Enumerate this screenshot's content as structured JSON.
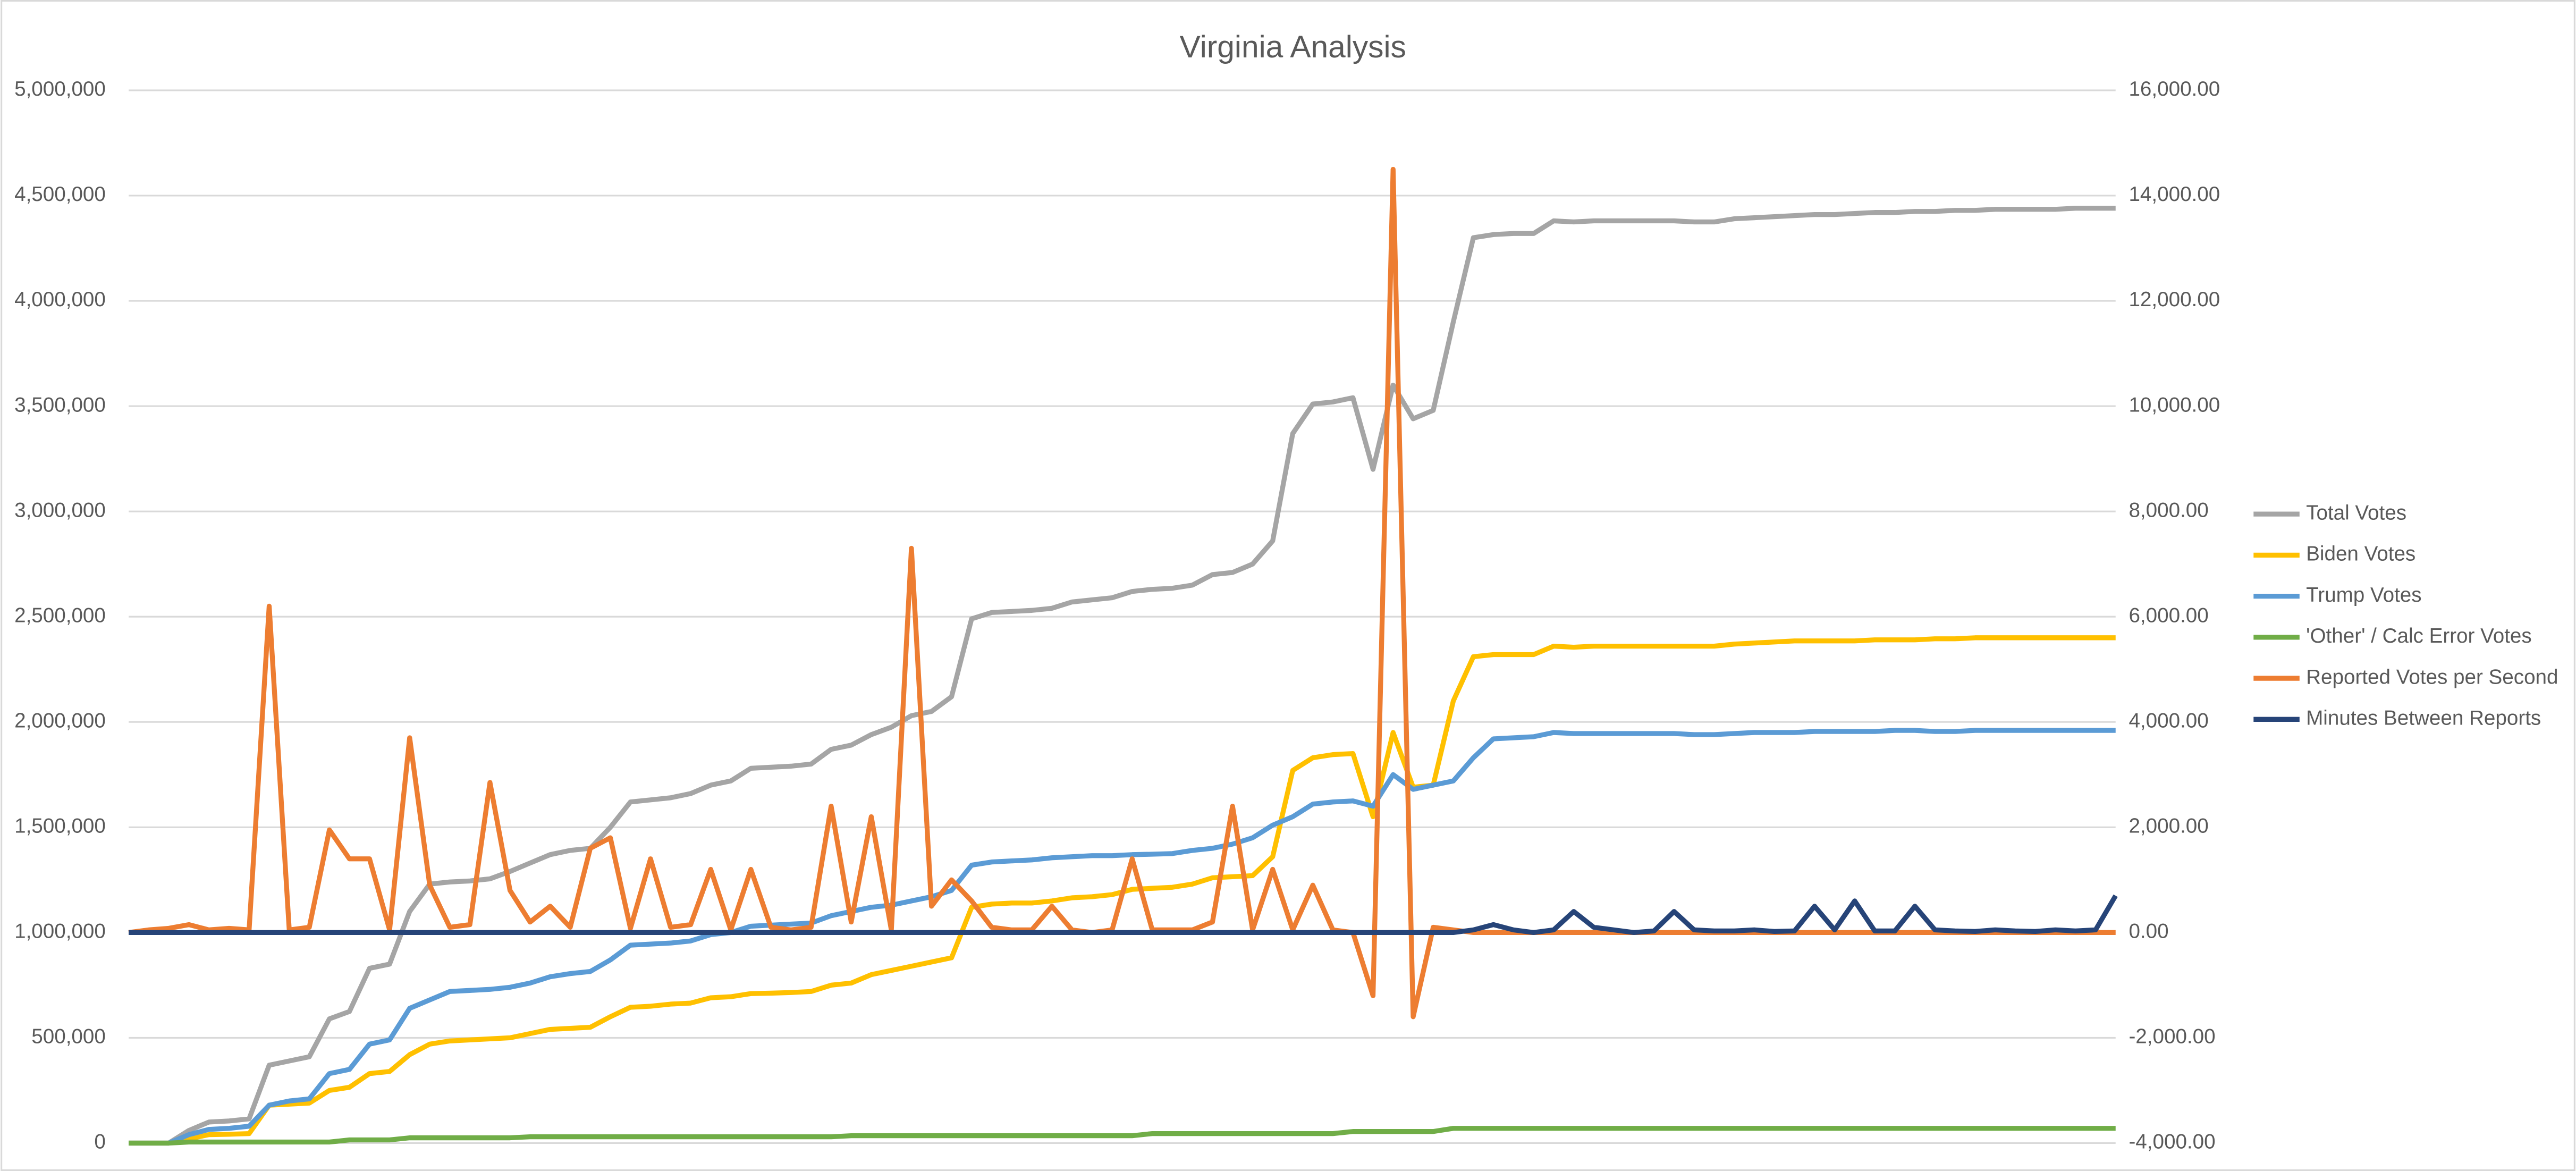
{
  "chart_data": {
    "type": "line",
    "title": "Virginia Analysis",
    "categories": [
      null,
      null,
      null,
      null,
      null,
      null,
      null,
      null,
      null,
      null,
      null,
      null,
      null,
      null,
      null,
      null,
      null,
      null,
      null,
      null,
      null,
      null,
      null,
      null,
      null,
      null,
      null,
      null,
      null,
      null,
      null,
      null,
      null,
      null,
      null,
      null,
      null,
      null,
      null,
      null,
      null,
      null,
      null,
      null,
      null,
      null,
      null,
      null,
      null,
      null,
      null,
      null,
      null,
      null,
      null,
      null,
      null,
      null,
      null,
      null,
      null,
      null,
      null,
      null,
      null,
      null,
      null,
      null,
      null,
      null,
      null,
      null,
      null,
      null,
      null,
      null,
      null,
      null,
      null,
      null,
      null,
      null,
      null,
      null,
      null,
      null,
      null,
      null,
      null,
      null,
      null,
      null,
      null,
      null,
      null,
      null,
      null,
      null,
      null,
      null
    ],
    "ylim": [
      0,
      5000000
    ],
    "yticks": [
      0,
      {
        "value": 500000,
        "label": "500,000"
      },
      {
        "value": 1000000,
        "label": "1,000,000"
      },
      {
        "value": 1500000,
        "label": "1,500,000"
      },
      {
        "value": 2000000,
        "label": "2,000,000"
      },
      {
        "value": 2500000,
        "label": "2,500,000"
      },
      {
        "value": 3000000,
        "label": "3,000,000"
      },
      {
        "value": 3500000,
        "label": "3,500,000"
      },
      {
        "value": 4000000,
        "label": "4,000,000"
      },
      {
        "value": 4500000,
        "label": "4,500,000"
      },
      {
        "value": 5000000,
        "label": "5,000,000"
      }
    ],
    "y2lim": [
      -4000,
      16000
    ],
    "y2ticks": [
      {
        "value": -4000,
        "label": "-4,000.00"
      },
      {
        "value": -2000,
        "label": "-2,000.00"
      },
      {
        "value": 0,
        "label": "0.00"
      },
      {
        "value": 2000,
        "label": "2,000.00"
      },
      {
        "value": 4000,
        "label": "4,000.00"
      },
      {
        "value": 6000,
        "label": "6,000.00"
      },
      {
        "value": 8000,
        "label": "8,000.00"
      },
      {
        "value": 10000,
        "label": "10,000.00"
      },
      {
        "value": 12000,
        "label": "12,000.00"
      },
      {
        "value": 14000,
        "label": "14,000.00"
      },
      {
        "value": 16000,
        "label": "16,000.00"
      }
    ],
    "grid": true,
    "legend": "right",
    "series": [
      {
        "name": "Total Votes",
        "color": "#a5a5a5",
        "values": [
          0,
          0,
          0,
          60000,
          100000,
          105000,
          115000,
          370000,
          390000,
          410000,
          590000,
          625000,
          830000,
          850000,
          1100000,
          1230000,
          1240000,
          1245000,
          1255000,
          1290000,
          1330000,
          1370000,
          1390000,
          1400000,
          1500000,
          1620000,
          1630000,
          1640000,
          1660000,
          1700000,
          1720000,
          1780000,
          1785000,
          1790000,
          1800000,
          1870000,
          1890000,
          1940000,
          1975000,
          2030000,
          2050000,
          2120000,
          2490000,
          2520000,
          2525000,
          2530000,
          2540000,
          2570000,
          2580000,
          2590000,
          2620000,
          2630000,
          2635000,
          2650000,
          2700000,
          2710000,
          2750000,
          2860000,
          3370000,
          3510000,
          3520000,
          3540000,
          3200000,
          3600000,
          3440000,
          3480000,
          3900000,
          4300000,
          4315000,
          4320000,
          4320000,
          4380000,
          4375000,
          4380000,
          4380000,
          4380000,
          4380000,
          4380000,
          4375000,
          4375000,
          4390000,
          4395000,
          4400000,
          4405000,
          4410000,
          4410000,
          4415000,
          4420000,
          4420000,
          4425000,
          4425000,
          4430000,
          4430000,
          4435000,
          4435000,
          4435000,
          4435000,
          4440000,
          4440000,
          4440000
        ]
      },
      {
        "name": "Biden Votes",
        "color": "#ffc000",
        "values": [
          0,
          0,
          0,
          20000,
          40000,
          42000,
          45000,
          180000,
          185000,
          190000,
          250000,
          265000,
          330000,
          340000,
          420000,
          470000,
          485000,
          490000,
          495000,
          500000,
          520000,
          540000,
          545000,
          550000,
          600000,
          645000,
          650000,
          660000,
          665000,
          690000,
          695000,
          710000,
          712000,
          715000,
          720000,
          750000,
          760000,
          800000,
          820000,
          840000,
          860000,
          880000,
          1120000,
          1135000,
          1140000,
          1140000,
          1150000,
          1165000,
          1170000,
          1180000,
          1205000,
          1210000,
          1215000,
          1230000,
          1260000,
          1265000,
          1270000,
          1360000,
          1770000,
          1830000,
          1845000,
          1850000,
          1550000,
          1950000,
          1690000,
          1700000,
          2100000,
          2310000,
          2320000,
          2320000,
          2320000,
          2360000,
          2355000,
          2360000,
          2360000,
          2360000,
          2360000,
          2360000,
          2360000,
          2360000,
          2370000,
          2375000,
          2380000,
          2385000,
          2385000,
          2385000,
          2385000,
          2390000,
          2390000,
          2390000,
          2395000,
          2395000,
          2400000,
          2400000,
          2400000,
          2400000,
          2400000,
          2400000,
          2400000,
          2400000
        ]
      },
      {
        "name": "Trump Votes",
        "color": "#5b9bd5",
        "values": [
          0,
          0,
          0,
          40000,
          65000,
          70000,
          80000,
          180000,
          200000,
          210000,
          330000,
          350000,
          470000,
          490000,
          640000,
          680000,
          720000,
          725000,
          730000,
          740000,
          760000,
          790000,
          805000,
          815000,
          870000,
          940000,
          945000,
          950000,
          960000,
          990000,
          1000000,
          1030000,
          1035000,
          1040000,
          1045000,
          1080000,
          1100000,
          1120000,
          1130000,
          1150000,
          1170000,
          1200000,
          1320000,
          1335000,
          1340000,
          1345000,
          1355000,
          1360000,
          1365000,
          1365000,
          1370000,
          1372000,
          1375000,
          1390000,
          1400000,
          1420000,
          1450000,
          1510000,
          1550000,
          1610000,
          1620000,
          1625000,
          1600000,
          1750000,
          1680000,
          1700000,
          1720000,
          1830000,
          1920000,
          1925000,
          1930000,
          1950000,
          1945000,
          1945000,
          1945000,
          1945000,
          1945000,
          1945000,
          1940000,
          1940000,
          1945000,
          1950000,
          1950000,
          1950000,
          1955000,
          1955000,
          1955000,
          1955000,
          1960000,
          1960000,
          1955000,
          1955000,
          1960000,
          1960000,
          1960000,
          1960000,
          1960000,
          1960000,
          1960000,
          1960000
        ]
      },
      {
        "name": "'Other' / Calc Error Votes",
        "color": "#70ad47",
        "values": [
          0,
          0,
          0,
          5000,
          5000,
          5000,
          5000,
          5000,
          5000,
          5000,
          5000,
          15000,
          15000,
          15000,
          25000,
          25000,
          25000,
          25000,
          25000,
          25000,
          30000,
          30000,
          30000,
          30000,
          30000,
          30000,
          30000,
          30000,
          30000,
          30000,
          30000,
          30000,
          30000,
          30000,
          30000,
          30000,
          35000,
          35000,
          35000,
          35000,
          35000,
          35000,
          35000,
          35000,
          35000,
          35000,
          35000,
          35000,
          35000,
          35000,
          35000,
          45000,
          45000,
          45000,
          45000,
          45000,
          45000,
          45000,
          45000,
          45000,
          45000,
          55000,
          55000,
          55000,
          55000,
          55000,
          70000,
          70000,
          70000,
          70000,
          70000,
          70000,
          70000,
          70000,
          70000,
          70000,
          70000,
          70000,
          70000,
          70000,
          70000,
          70000,
          70000,
          70000,
          70000,
          70000,
          70000,
          70000,
          70000,
          70000,
          70000,
          70000,
          70000,
          70000,
          70000,
          70000,
          70000,
          70000,
          70000,
          70000
        ]
      },
      {
        "name": "Reported Votes per Second",
        "color": "#ed7d31",
        "axis": "y2",
        "values": [
          0,
          50,
          80,
          150,
          50,
          80,
          50,
          6200,
          50,
          100,
          1950,
          1400,
          1400,
          50,
          3700,
          900,
          100,
          150,
          2850,
          800,
          200,
          500,
          100,
          1600,
          1800,
          80,
          1400,
          100,
          150,
          1200,
          50,
          1200,
          100,
          50,
          100,
          2400,
          200,
          2200,
          50,
          7300,
          500,
          1000,
          600,
          100,
          50,
          50,
          500,
          50,
          0,
          50,
          1400,
          50,
          50,
          50,
          200,
          2400,
          50,
          1200,
          50,
          900,
          50,
          0,
          -1200,
          14500,
          -1600,
          100,
          50,
          0,
          0,
          0,
          0,
          0,
          0,
          0,
          0,
          0,
          0,
          0,
          0,
          0,
          0,
          0,
          0,
          0,
          0,
          0,
          0,
          0,
          0,
          0,
          0,
          0,
          0,
          0,
          0,
          0,
          0,
          0,
          0,
          0
        ]
      },
      {
        "name": "Minutes Between Reports",
        "color": "#264478",
        "axis": "y2",
        "values": [
          0,
          0,
          0,
          0,
          0,
          0,
          0,
          0,
          0,
          0,
          0,
          0,
          0,
          0,
          0,
          0,
          0,
          0,
          0,
          0,
          0,
          0,
          0,
          0,
          0,
          0,
          0,
          0,
          0,
          0,
          0,
          0,
          0,
          0,
          0,
          0,
          0,
          0,
          0,
          0,
          0,
          0,
          0,
          0,
          0,
          0,
          0,
          0,
          0,
          0,
          0,
          0,
          0,
          0,
          0,
          0,
          0,
          0,
          0,
          0,
          0,
          0,
          0,
          0,
          0,
          0,
          0,
          50,
          150,
          50,
          0,
          50,
          400,
          100,
          50,
          0,
          30,
          400,
          50,
          30,
          30,
          50,
          20,
          30,
          500,
          50,
          600,
          30,
          30,
          500,
          50,
          30,
          20,
          50,
          30,
          20,
          50,
          30,
          50,
          700
        ]
      }
    ]
  }
}
